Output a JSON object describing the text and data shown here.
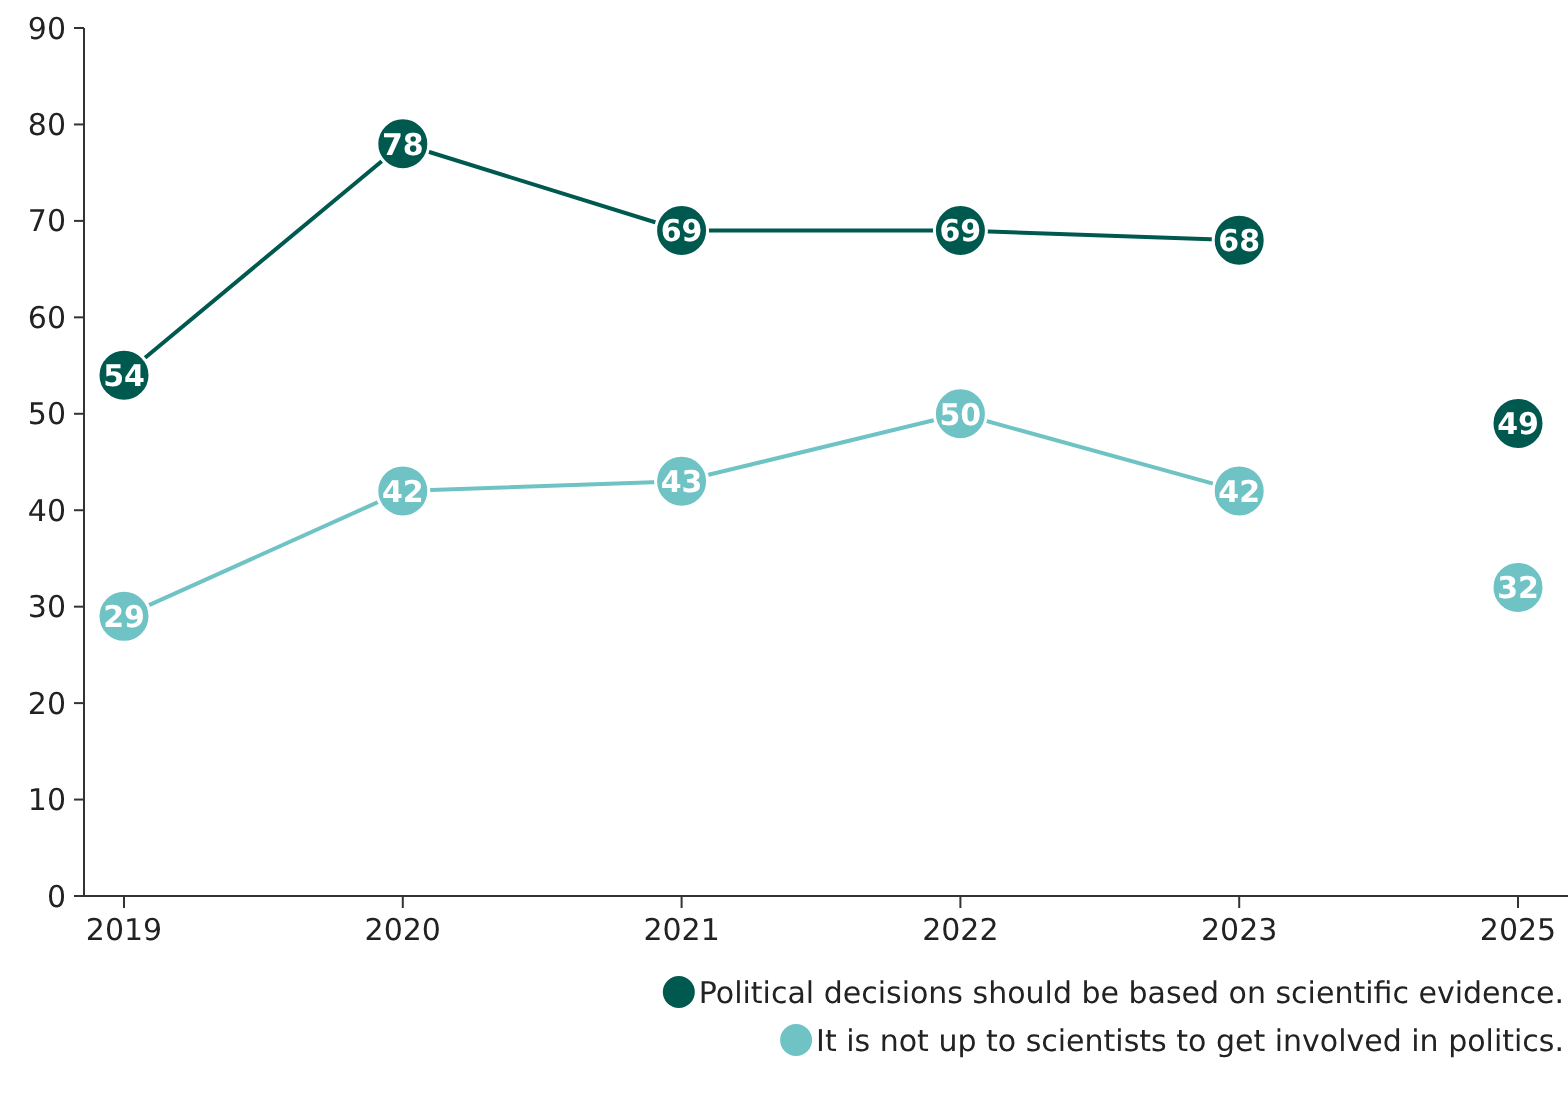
{
  "chart_data": {
    "type": "line",
    "categories": [
      "2019",
      "2020",
      "2021",
      "2022",
      "2023",
      "2025"
    ],
    "series": [
      {
        "name": "Political decisions should be based on scientific evidence.",
        "color": "#00594f",
        "values": [
          54,
          78,
          69,
          69,
          68,
          null
        ]
      },
      {
        "name": "It is not up to scientists to get involved in politics.",
        "color": "#6fc3c4",
        "values": [
          29,
          42,
          43,
          50,
          42,
          null
        ]
      },
      {
        "type": "scatter",
        "color": "#00594f",
        "values": [
          null,
          null,
          null,
          null,
          null,
          49
        ]
      },
      {
        "type": "scatter",
        "color": "#6fc3c4",
        "values": [
          null,
          null,
          null,
          null,
          null,
          32
        ]
      }
    ],
    "ylim": [
      0,
      90
    ],
    "yticks": [
      0,
      10,
      20,
      30,
      40,
      50,
      60,
      70,
      80,
      90
    ],
    "data_labels": true,
    "marker": "circle",
    "legend": "bottom right",
    "grid": false
  }
}
